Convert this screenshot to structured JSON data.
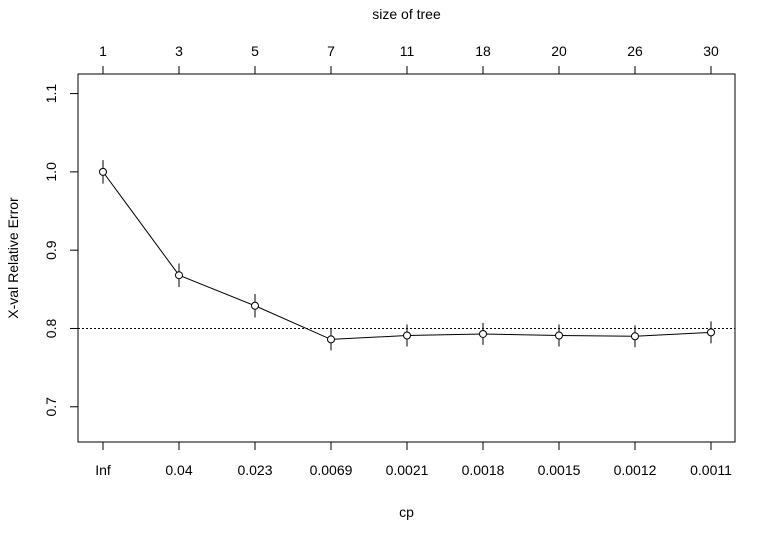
{
  "chart_data": {
    "type": "line",
    "title": "",
    "xlabel": "cp",
    "ylabel": "X-val Relative Error",
    "top_axis_label": "size of tree",
    "categories": [
      "Inf",
      "0.04",
      "0.023",
      "0.0069",
      "0.0021",
      "0.0018",
      "0.0015",
      "0.0012",
      "0.0011"
    ],
    "top_categories": [
      "1",
      "3",
      "5",
      "7",
      "11",
      "18",
      "20",
      "26",
      "30"
    ],
    "ylim": [
      0.655,
      1.125
    ],
    "yticks": [
      "0.7",
      "0.8",
      "0.9",
      "1.0",
      "1.1"
    ],
    "reference_line": 0.8,
    "series": [
      {
        "values": [
          1.0,
          0.868,
          0.829,
          0.786,
          0.791,
          0.793,
          0.791,
          0.79,
          0.795
        ],
        "lower": [
          0.985,
          0.853,
          0.814,
          0.772,
          0.777,
          0.779,
          0.777,
          0.776,
          0.781
        ],
        "upper": [
          1.015,
          0.883,
          0.844,
          0.8,
          0.805,
          0.807,
          0.805,
          0.804,
          0.809
        ]
      }
    ],
    "grid": false,
    "legend": "none"
  }
}
